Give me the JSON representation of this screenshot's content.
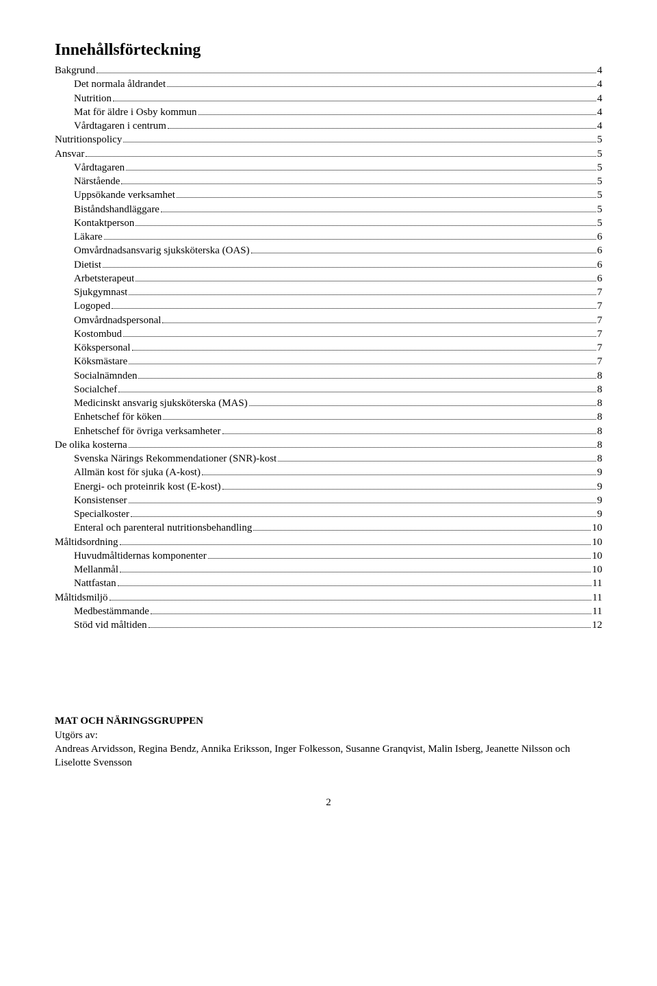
{
  "title": "Innehållsförteckning",
  "toc": [
    {
      "label": "Bakgrund",
      "page": "4",
      "indent": 0
    },
    {
      "label": "Det normala åldrandet",
      "page": "4",
      "indent": 1
    },
    {
      "label": "Nutrition",
      "page": "4",
      "indent": 1
    },
    {
      "label": "Mat för äldre i Osby kommun",
      "page": "4",
      "indent": 1
    },
    {
      "label": "Vårdtagaren i centrum",
      "page": "4",
      "indent": 1
    },
    {
      "label": "Nutritionspolicy",
      "page": "5",
      "indent": 0
    },
    {
      "label": "Ansvar",
      "page": "5",
      "indent": 0
    },
    {
      "label": "Vårdtagaren",
      "page": "5",
      "indent": 1
    },
    {
      "label": "Närstående",
      "page": "5",
      "indent": 1
    },
    {
      "label": "Uppsökande verksamhet",
      "page": "5",
      "indent": 1
    },
    {
      "label": "Biståndshandläggare",
      "page": "5",
      "indent": 1
    },
    {
      "label": "Kontaktperson",
      "page": "5",
      "indent": 1
    },
    {
      "label": "Läkare",
      "page": "6",
      "indent": 1
    },
    {
      "label": "Omvårdnadsansvarig sjuksköterska (OAS)",
      "page": "6",
      "indent": 1
    },
    {
      "label": "Dietist",
      "page": "6",
      "indent": 1
    },
    {
      "label": "Arbetsterapeut",
      "page": "6",
      "indent": 1
    },
    {
      "label": "Sjukgymnast",
      "page": "7",
      "indent": 1
    },
    {
      "label": "Logoped",
      "page": "7",
      "indent": 1
    },
    {
      "label": "Omvårdnadspersonal",
      "page": "7",
      "indent": 1
    },
    {
      "label": "Kostombud",
      "page": "7",
      "indent": 1
    },
    {
      "label": "Kökspersonal",
      "page": "7",
      "indent": 1
    },
    {
      "label": "Köksmästare",
      "page": "7",
      "indent": 1
    },
    {
      "label": "Socialnämnden",
      "page": "8",
      "indent": 1
    },
    {
      "label": "Socialchef",
      "page": "8",
      "indent": 1
    },
    {
      "label": "Medicinskt ansvarig sjuksköterska (MAS)",
      "page": "8",
      "indent": 1
    },
    {
      "label": "Enhetschef för köken",
      "page": "8",
      "indent": 1
    },
    {
      "label": "Enhetschef för övriga verksamheter",
      "page": "8",
      "indent": 1
    },
    {
      "label": "De olika kosterna",
      "page": "8",
      "indent": 0
    },
    {
      "label": "Svenska Närings Rekommendationer (SNR)-kost",
      "page": "8",
      "indent": 1
    },
    {
      "label": "Allmän kost för sjuka  (A-kost)",
      "page": "9",
      "indent": 1
    },
    {
      "label": "Energi- och proteinrik kost (E-kost)",
      "page": "9",
      "indent": 1
    },
    {
      "label": "Konsistenser",
      "page": "9",
      "indent": 1
    },
    {
      "label": "Specialkoster",
      "page": "9",
      "indent": 1
    },
    {
      "label": "Enteral och parenteral nutritionsbehandling",
      "page": "10",
      "indent": 1
    },
    {
      "label": "Måltidsordning",
      "page": "10",
      "indent": 0
    },
    {
      "label": "Huvudmåltidernas komponenter",
      "page": "10",
      "indent": 1
    },
    {
      "label": "Mellanmål",
      "page": "10",
      "indent": 1
    },
    {
      "label": "Nattfastan",
      "page": "11",
      "indent": 1
    },
    {
      "label": "Måltidsmiljö",
      "page": "11",
      "indent": 0
    },
    {
      "label": "Medbestämmande",
      "page": "11",
      "indent": 1
    },
    {
      "label": "Stöd vid måltiden",
      "page": "12",
      "indent": 1
    }
  ],
  "credits": {
    "heading": "MAT OCH NÄRINGSGRUPPEN",
    "subheading": "Utgörs av:",
    "body": "Andreas Arvidsson, Regina Bendz, Annika Eriksson, Inger Folkesson, Susanne Granqvist, Malin Isberg, Jeanette Nilsson och Liselotte Svensson"
  },
  "page_number": "2"
}
